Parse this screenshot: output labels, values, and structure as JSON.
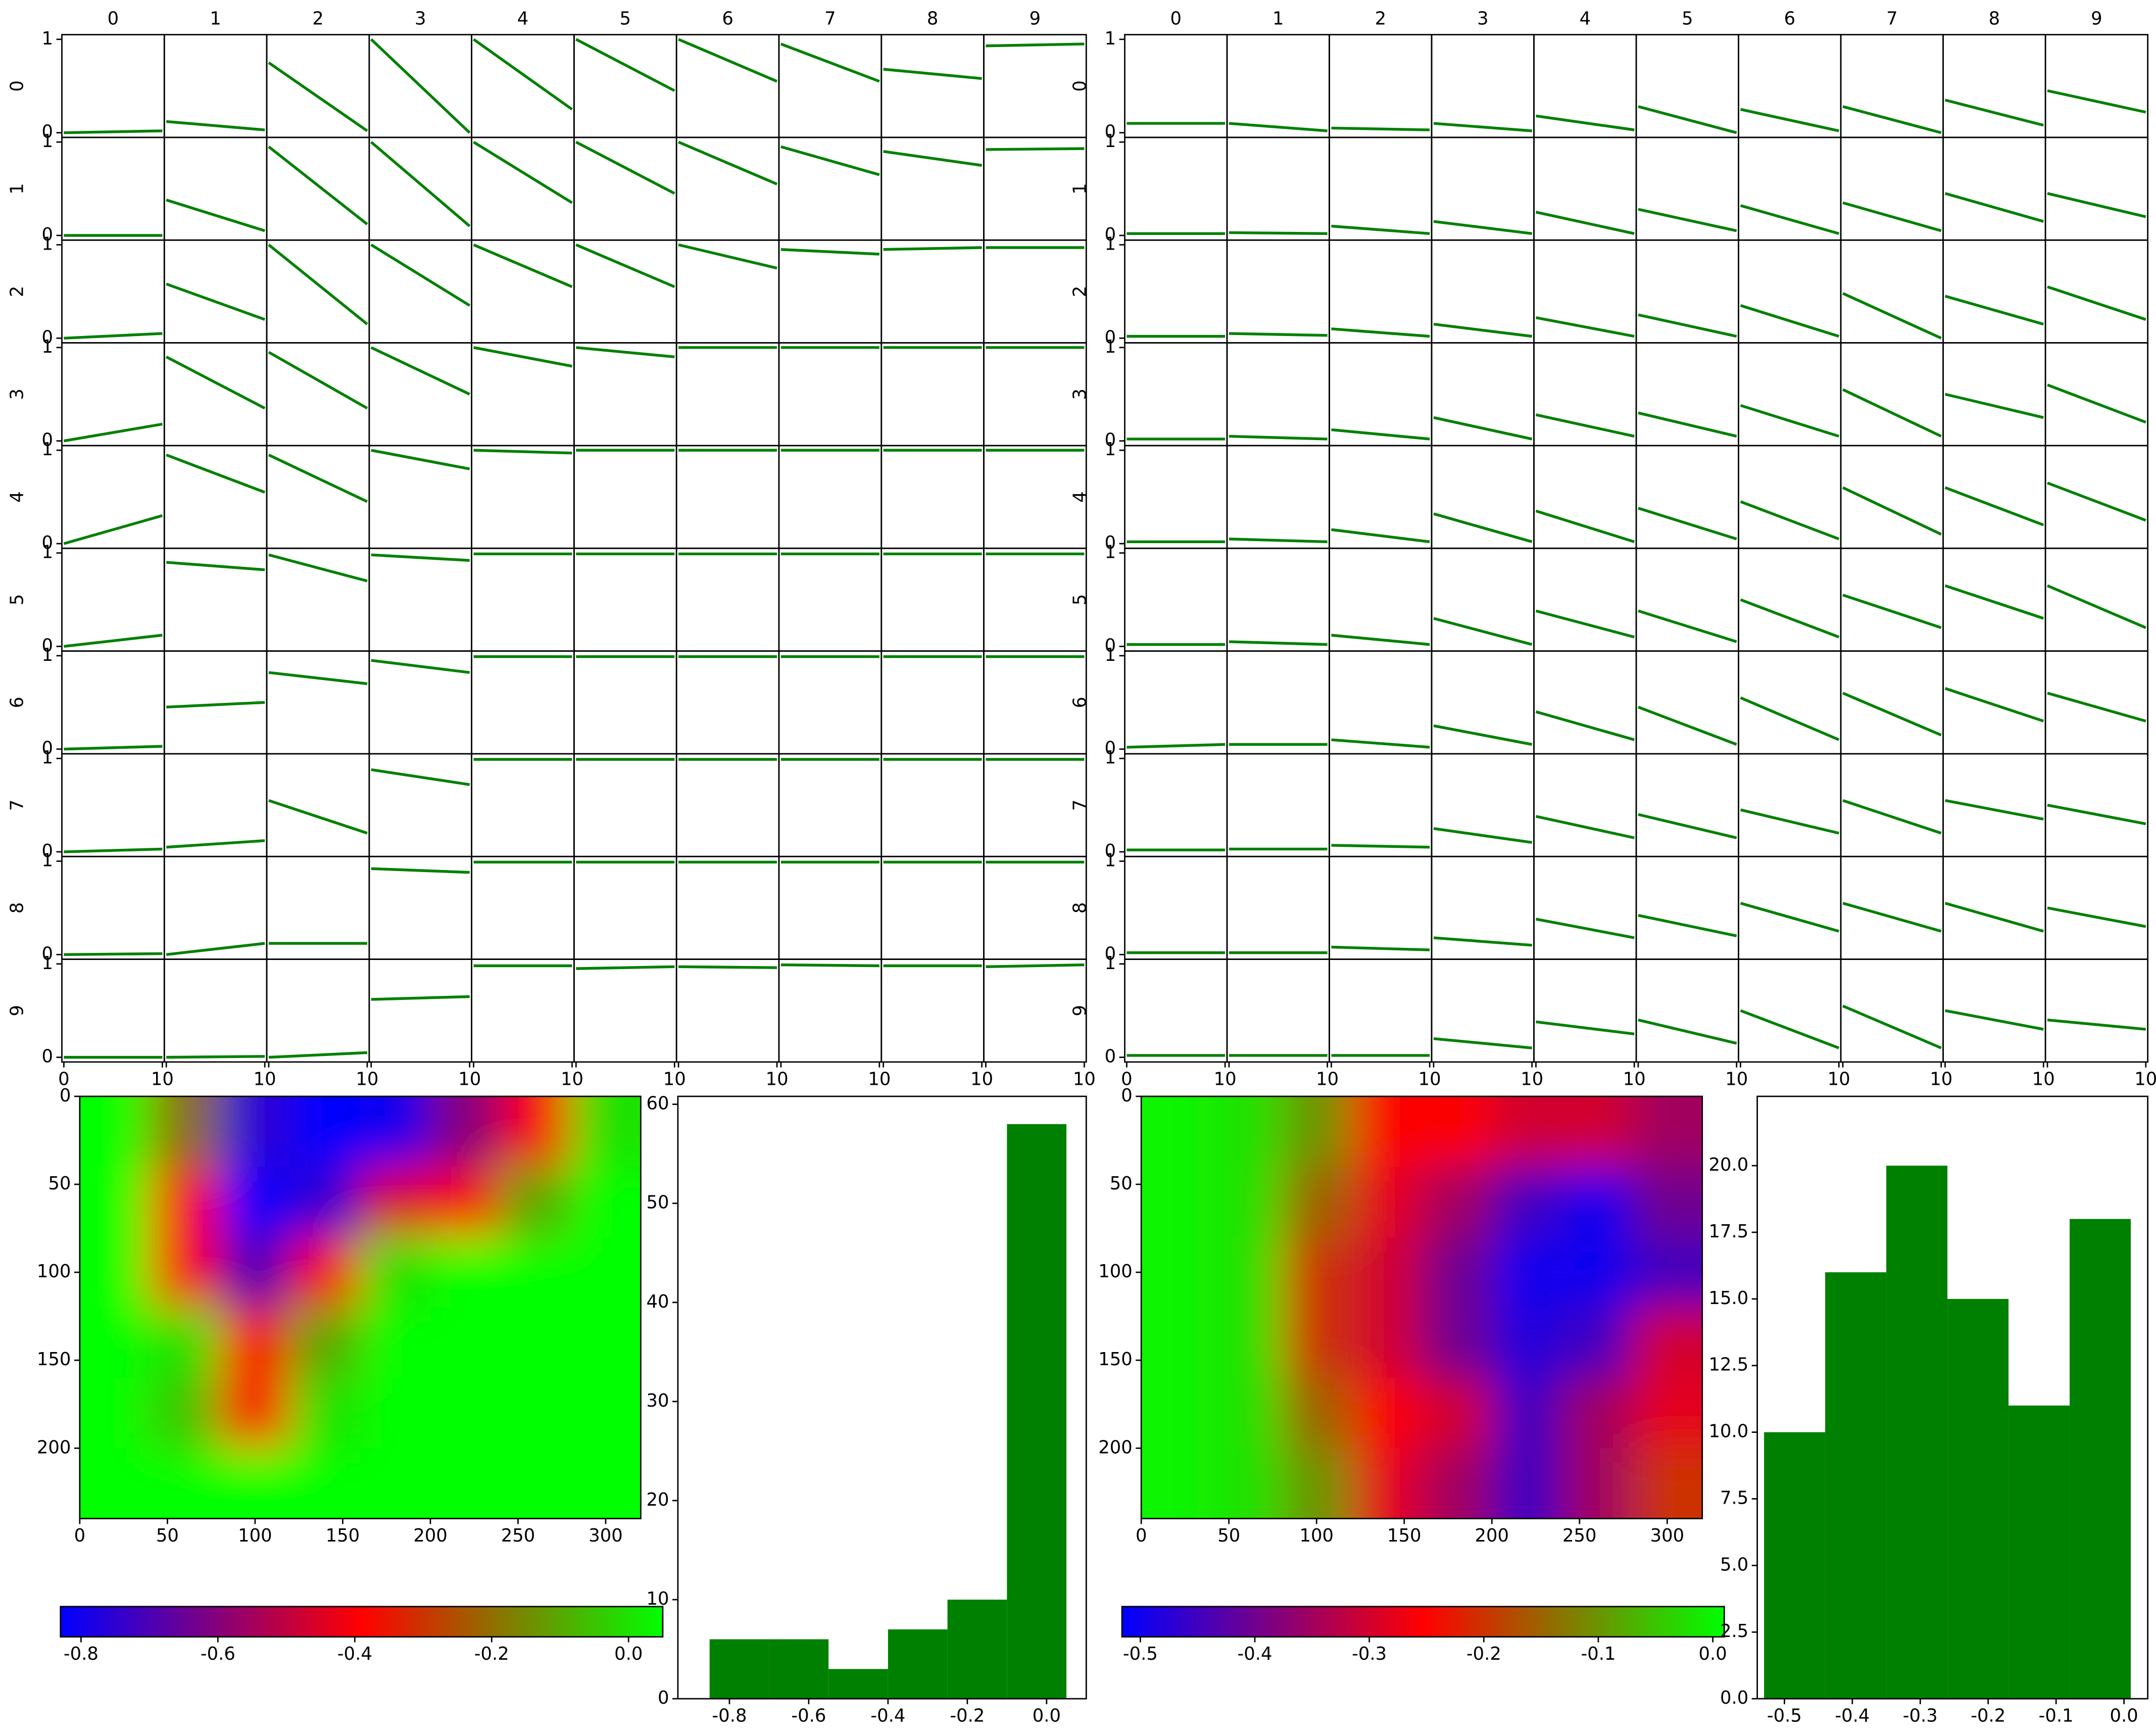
{
  "chart_data": [
    {
      "type": "regression-matrix",
      "columns": [
        "0",
        "1",
        "2",
        "3",
        "4",
        "5",
        "6",
        "7",
        "8",
        "9"
      ],
      "rows": [
        "0",
        "1",
        "2",
        "3",
        "4",
        "5",
        "6",
        "7",
        "8",
        "9"
      ],
      "xlim": [
        -0.2,
        10.2
      ],
      "ylim": [
        -0.05,
        1.05
      ],
      "xticks": [
        0,
        10
      ],
      "yticks": [
        0,
        1
      ],
      "color": "#008000",
      "line_x": [
        0,
        10
      ],
      "lines": [
        [
          [
            0.0,
            0.02
          ],
          [
            0.12,
            0.03
          ],
          [
            0.75,
            0.02
          ],
          [
            1.0,
            0.0
          ],
          [
            1.0,
            0.25
          ],
          [
            1.0,
            0.45
          ],
          [
            1.0,
            0.55
          ],
          [
            0.95,
            0.55
          ],
          [
            0.68,
            0.58
          ],
          [
            0.93,
            0.95
          ]
        ],
        [
          [
            0.0,
            0.0
          ],
          [
            0.38,
            0.05
          ],
          [
            0.95,
            0.12
          ],
          [
            1.0,
            0.1
          ],
          [
            1.0,
            0.35
          ],
          [
            1.0,
            0.45
          ],
          [
            1.0,
            0.55
          ],
          [
            0.95,
            0.65
          ],
          [
            0.9,
            0.75
          ],
          [
            0.92,
            0.93
          ]
        ],
        [
          [
            0.0,
            0.05
          ],
          [
            0.58,
            0.2
          ],
          [
            1.0,
            0.15
          ],
          [
            1.0,
            0.35
          ],
          [
            1.0,
            0.55
          ],
          [
            1.0,
            0.55
          ],
          [
            1.0,
            0.75
          ],
          [
            0.95,
            0.9
          ],
          [
            0.95,
            0.97
          ],
          [
            0.97,
            0.97
          ]
        ],
        [
          [
            0.0,
            0.18
          ],
          [
            0.9,
            0.35
          ],
          [
            0.95,
            0.35
          ],
          [
            1.0,
            0.5
          ],
          [
            1.0,
            0.8
          ],
          [
            1.0,
            0.9
          ],
          [
            1.0,
            1.0
          ],
          [
            1.0,
            1.0
          ],
          [
            1.0,
            1.0
          ],
          [
            1.0,
            1.0
          ]
        ],
        [
          [
            0.0,
            0.3
          ],
          [
            0.95,
            0.55
          ],
          [
            0.95,
            0.45
          ],
          [
            1.0,
            0.8
          ],
          [
            1.0,
            0.97
          ],
          [
            1.0,
            1.0
          ],
          [
            1.0,
            1.0
          ],
          [
            1.0,
            1.0
          ],
          [
            1.0,
            1.0
          ],
          [
            1.0,
            1.0
          ]
        ],
        [
          [
            0.0,
            0.12
          ],
          [
            0.9,
            0.82
          ],
          [
            0.98,
            0.7
          ],
          [
            0.98,
            0.92
          ],
          [
            0.99,
            0.99
          ],
          [
            0.99,
            0.99
          ],
          [
            0.99,
            0.99
          ],
          [
            0.99,
            0.99
          ],
          [
            0.99,
            0.99
          ],
          [
            0.99,
            0.99
          ]
        ],
        [
          [
            0.0,
            0.03
          ],
          [
            0.45,
            0.5
          ],
          [
            0.82,
            0.7
          ],
          [
            0.95,
            0.82
          ],
          [
            0.99,
            0.99
          ],
          [
            0.99,
            0.99
          ],
          [
            0.99,
            0.99
          ],
          [
            0.99,
            0.99
          ],
          [
            0.99,
            0.99
          ],
          [
            0.99,
            0.99
          ]
        ],
        [
          [
            0.0,
            0.03
          ],
          [
            0.05,
            0.12
          ],
          [
            0.55,
            0.2
          ],
          [
            0.88,
            0.72
          ],
          [
            0.99,
            0.99
          ],
          [
            0.99,
            0.99
          ],
          [
            0.99,
            0.99
          ],
          [
            0.99,
            0.99
          ],
          [
            0.99,
            0.99
          ],
          [
            0.99,
            0.99
          ]
        ],
        [
          [
            0.0,
            0.01
          ],
          [
            0.0,
            0.12
          ],
          [
            0.12,
            0.12
          ],
          [
            0.92,
            0.88
          ],
          [
            0.99,
            0.99
          ],
          [
            0.99,
            0.99
          ],
          [
            0.99,
            0.99
          ],
          [
            0.99,
            0.99
          ],
          [
            0.99,
            0.99
          ],
          [
            0.99,
            0.99
          ]
        ],
        [
          [
            0.0,
            0.0
          ],
          [
            0.0,
            0.01
          ],
          [
            0.0,
            0.05
          ],
          [
            0.62,
            0.65
          ],
          [
            0.98,
            0.98
          ],
          [
            0.95,
            0.97
          ],
          [
            0.97,
            0.96
          ],
          [
            0.99,
            0.98
          ],
          [
            0.98,
            0.98
          ],
          [
            0.97,
            0.99
          ]
        ]
      ]
    },
    {
      "type": "regression-matrix",
      "columns": [
        "0",
        "1",
        "2",
        "3",
        "4",
        "5",
        "6",
        "7",
        "8",
        "9"
      ],
      "rows": [
        "0",
        "1",
        "2",
        "3",
        "4",
        "5",
        "6",
        "7",
        "8",
        "9"
      ],
      "xlim": [
        -0.2,
        10.2
      ],
      "ylim": [
        -0.05,
        1.05
      ],
      "xticks": [
        0,
        10
      ],
      "yticks": [
        0,
        1
      ],
      "color": "#008000",
      "line_x": [
        0,
        10
      ],
      "lines": [
        [
          [
            0.1,
            0.1
          ],
          [
            0.1,
            0.02
          ],
          [
            0.05,
            0.03
          ],
          [
            0.1,
            0.02
          ],
          [
            0.18,
            0.03
          ],
          [
            0.28,
            0.0
          ],
          [
            0.25,
            0.02
          ],
          [
            0.28,
            0.0
          ],
          [
            0.35,
            0.08
          ],
          [
            0.45,
            0.22
          ]
        ],
        [
          [
            0.02,
            0.02
          ],
          [
            0.03,
            0.02
          ],
          [
            0.1,
            0.02
          ],
          [
            0.15,
            0.02
          ],
          [
            0.25,
            0.02
          ],
          [
            0.28,
            0.05
          ],
          [
            0.32,
            0.02
          ],
          [
            0.35,
            0.05
          ],
          [
            0.45,
            0.15
          ],
          [
            0.45,
            0.2
          ]
        ],
        [
          [
            0.02,
            0.02
          ],
          [
            0.05,
            0.03
          ],
          [
            0.1,
            0.02
          ],
          [
            0.15,
            0.02
          ],
          [
            0.22,
            0.02
          ],
          [
            0.25,
            0.02
          ],
          [
            0.35,
            0.02
          ],
          [
            0.48,
            0.0
          ],
          [
            0.45,
            0.15
          ],
          [
            0.55,
            0.2
          ]
        ],
        [
          [
            0.02,
            0.02
          ],
          [
            0.05,
            0.02
          ],
          [
            0.12,
            0.02
          ],
          [
            0.25,
            0.02
          ],
          [
            0.28,
            0.05
          ],
          [
            0.3,
            0.05
          ],
          [
            0.38,
            0.05
          ],
          [
            0.55,
            0.05
          ],
          [
            0.5,
            0.25
          ],
          [
            0.6,
            0.2
          ]
        ],
        [
          [
            0.02,
            0.02
          ],
          [
            0.05,
            0.02
          ],
          [
            0.15,
            0.02
          ],
          [
            0.32,
            0.02
          ],
          [
            0.35,
            0.02
          ],
          [
            0.38,
            0.05
          ],
          [
            0.45,
            0.05
          ],
          [
            0.6,
            0.1
          ],
          [
            0.6,
            0.2
          ],
          [
            0.65,
            0.25
          ]
        ],
        [
          [
            0.02,
            0.02
          ],
          [
            0.05,
            0.02
          ],
          [
            0.12,
            0.02
          ],
          [
            0.3,
            0.02
          ],
          [
            0.38,
            0.1
          ],
          [
            0.38,
            0.05
          ],
          [
            0.5,
            0.1
          ],
          [
            0.55,
            0.2
          ],
          [
            0.65,
            0.3
          ],
          [
            0.65,
            0.2
          ]
        ],
        [
          [
            0.02,
            0.05
          ],
          [
            0.05,
            0.05
          ],
          [
            0.1,
            0.02
          ],
          [
            0.25,
            0.05
          ],
          [
            0.4,
            0.1
          ],
          [
            0.45,
            0.05
          ],
          [
            0.55,
            0.1
          ],
          [
            0.6,
            0.15
          ],
          [
            0.65,
            0.3
          ],
          [
            0.6,
            0.3
          ]
        ],
        [
          [
            0.02,
            0.02
          ],
          [
            0.03,
            0.03
          ],
          [
            0.07,
            0.05
          ],
          [
            0.25,
            0.1
          ],
          [
            0.38,
            0.15
          ],
          [
            0.4,
            0.15
          ],
          [
            0.45,
            0.2
          ],
          [
            0.55,
            0.2
          ],
          [
            0.55,
            0.35
          ],
          [
            0.5,
            0.3
          ]
        ],
        [
          [
            0.02,
            0.02
          ],
          [
            0.02,
            0.02
          ],
          [
            0.08,
            0.05
          ],
          [
            0.18,
            0.1
          ],
          [
            0.38,
            0.18
          ],
          [
            0.42,
            0.2
          ],
          [
            0.55,
            0.25
          ],
          [
            0.55,
            0.25
          ],
          [
            0.55,
            0.25
          ],
          [
            0.5,
            0.3
          ]
        ],
        [
          [
            0.02,
            0.02
          ],
          [
            0.02,
            0.02
          ],
          [
            0.02,
            0.02
          ],
          [
            0.2,
            0.1
          ],
          [
            0.38,
            0.25
          ],
          [
            0.4,
            0.15
          ],
          [
            0.5,
            0.1
          ],
          [
            0.55,
            0.1
          ],
          [
            0.5,
            0.3
          ],
          [
            0.4,
            0.3
          ]
        ]
      ]
    },
    {
      "type": "heatmap",
      "xlim": [
        0,
        320
      ],
      "ylim": [
        240,
        0
      ],
      "xticks": [
        0,
        50,
        100,
        150,
        200,
        250,
        300
      ],
      "yticks": [
        0,
        50,
        100,
        150,
        200
      ],
      "colormap": [
        "#0000ff",
        "#ff0000",
        "#00ff00"
      ],
      "clim": [
        -0.83,
        0.05
      ],
      "cticks": [
        -0.8,
        -0.6,
        -0.4,
        -0.2,
        {
          "value": 0,
          "label": "0.0"
        }
      ],
      "z": [
        [
          0.05,
          -0.2,
          -0.75,
          -0.83,
          -0.8,
          -0.6,
          -0.4,
          0.0
        ],
        [
          0.05,
          -0.4,
          -0.83,
          -0.75,
          -0.45,
          -0.4,
          -0.1,
          0.05
        ],
        [
          0.05,
          -0.4,
          -0.7,
          -0.4,
          0.0,
          0.05,
          0.05,
          0.05
        ],
        [
          0.05,
          0.0,
          -0.4,
          -0.1,
          0.05,
          0.05,
          0.05,
          0.05
        ],
        [
          0.05,
          -0.05,
          -0.4,
          0.0,
          0.05,
          0.05,
          0.05,
          0.05
        ],
        [
          0.05,
          0.05,
          0.05,
          0.05,
          0.05,
          0.05,
          0.05,
          0.05
        ]
      ]
    },
    {
      "type": "histogram",
      "bins": [
        -0.85,
        -0.7,
        -0.55,
        -0.4,
        -0.25,
        -0.1,
        0.05
      ],
      "counts": [
        6,
        6,
        3,
        7,
        10,
        58
      ],
      "color": "#008000",
      "xlim": [
        -0.93,
        0.1
      ],
      "ylim": [
        0,
        60.8
      ],
      "xticks": [
        -0.8,
        -0.6,
        -0.4,
        -0.2,
        {
          "value": 0,
          "label": "0.0"
        }
      ],
      "yticks": [
        0,
        10,
        20,
        30,
        40,
        50,
        60
      ]
    },
    {
      "type": "heatmap",
      "xlim": [
        0,
        320
      ],
      "ylim": [
        240,
        0
      ],
      "xticks": [
        0,
        50,
        100,
        150,
        200,
        250,
        300
      ],
      "yticks": [
        0,
        50,
        100,
        150,
        200
      ],
      "colormap": [
        "#0000ff",
        "#ff0000",
        "#00ff00"
      ],
      "clim": [
        -0.516,
        0.01
      ],
      "cticks": [
        -0.5,
        -0.4,
        -0.3,
        -0.2,
        -0.1,
        {
          "value": 0,
          "label": "0.0"
        }
      ],
      "z": [
        [
          0.0,
          -0.02,
          -0.1,
          -0.25,
          -0.25,
          -0.3,
          -0.3,
          -0.35
        ],
        [
          0.0,
          -0.02,
          -0.15,
          -0.28,
          -0.35,
          -0.45,
          -0.5,
          -0.4
        ],
        [
          0.0,
          -0.02,
          -0.2,
          -0.3,
          -0.4,
          -0.5,
          -0.5,
          -0.45
        ],
        [
          0.0,
          -0.02,
          -0.2,
          -0.3,
          -0.4,
          -0.48,
          -0.45,
          -0.3
        ],
        [
          0.0,
          -0.02,
          -0.15,
          -0.25,
          -0.3,
          -0.45,
          -0.35,
          -0.28
        ],
        [
          0.0,
          -0.02,
          -0.1,
          -0.28,
          -0.35,
          -0.45,
          -0.35,
          -0.2
        ]
      ]
    },
    {
      "type": "histogram",
      "bins": [
        -0.53,
        -0.44,
        -0.35,
        -0.26,
        -0.17,
        -0.08,
        0.01
      ],
      "counts": [
        10,
        16,
        20,
        15,
        11,
        18
      ],
      "color": "#008000",
      "xlim": [
        -0.54,
        0.035
      ],
      "ylim": [
        0,
        22.6
      ],
      "xticks": [
        -0.5,
        -0.4,
        -0.3,
        -0.2,
        -0.1,
        {
          "value": 0,
          "label": "0.0"
        }
      ],
      "yticks": [
        {
          "value": 0,
          "label": "0.0"
        },
        2.5,
        {
          "value": 5,
          "label": "5.0"
        },
        7.5,
        {
          "value": 10,
          "label": "10.0"
        },
        12.5,
        {
          "value": 15,
          "label": "15.0"
        },
        17.5,
        {
          "value": 20,
          "label": "20.0"
        }
      ]
    }
  ]
}
